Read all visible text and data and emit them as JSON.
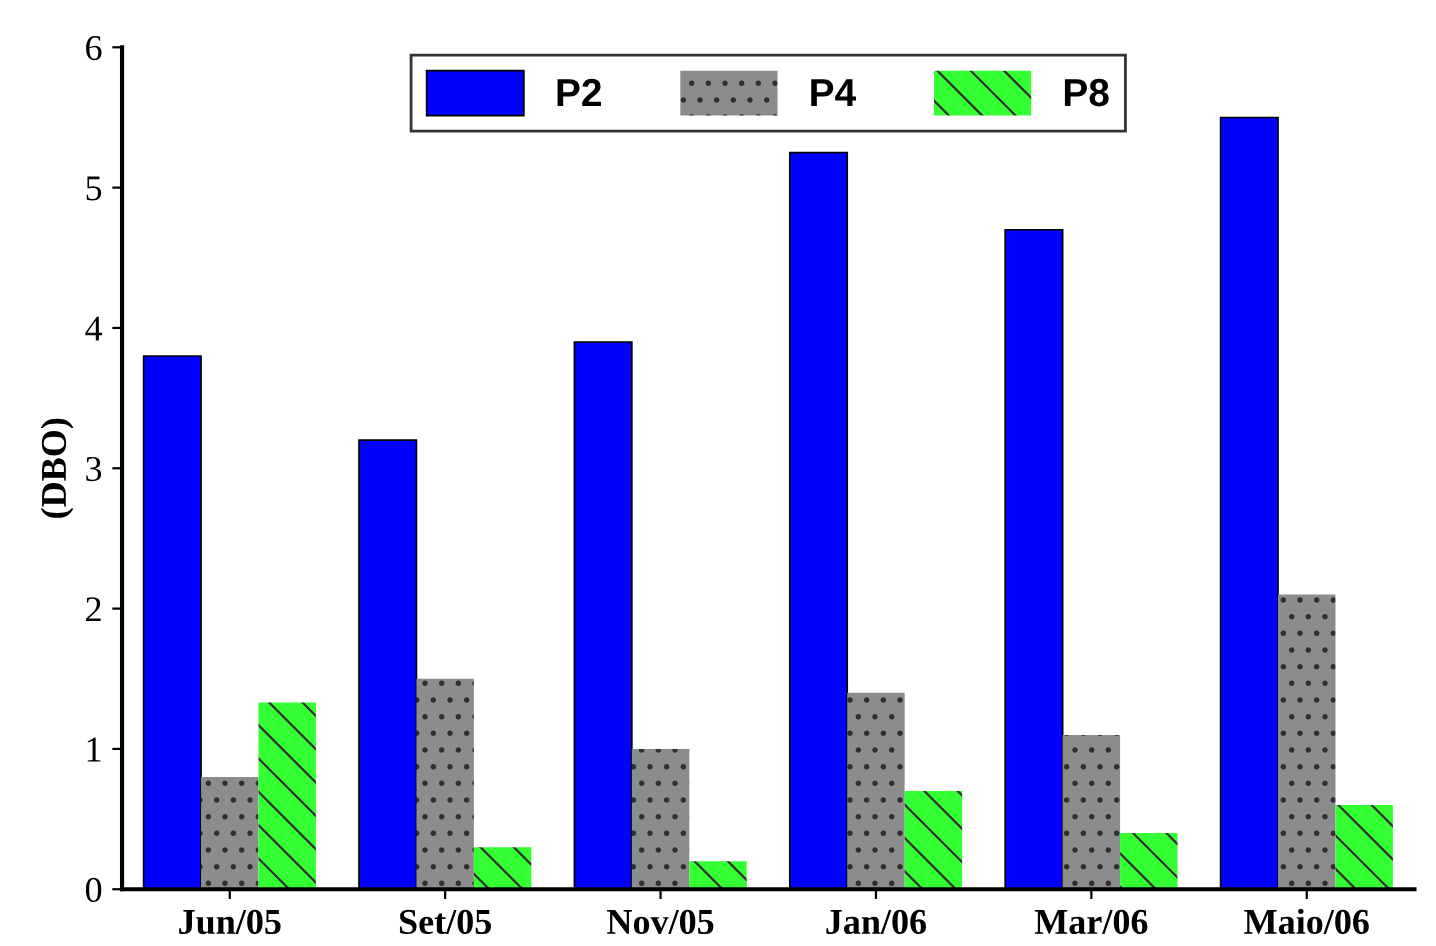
{
  "chart_data": {
    "type": "bar",
    "ylabel": "(DBO)",
    "categories": [
      "Jun/05",
      "Set/05",
      "Nov/05",
      "Jan/06",
      "Mar/06",
      "Maio/06"
    ],
    "series": [
      {
        "name": "P2",
        "color": "#0000ff",
        "values": [
          3.8,
          3.2,
          3.9,
          5.25,
          4.7,
          5.5
        ]
      },
      {
        "name": "P4",
        "color": "#8c8c8c",
        "values": [
          0.8,
          1.5,
          1.0,
          1.4,
          1.1,
          2.1
        ]
      },
      {
        "name": "P8",
        "color": "#33ff33",
        "values": [
          1.33,
          0.3,
          0.2,
          0.7,
          0.4,
          0.6
        ]
      }
    ],
    "ylim": [
      0,
      6
    ],
    "yticks": [
      0,
      1,
      2,
      3,
      4,
      5,
      6
    ],
    "grid": false,
    "legend": "top"
  }
}
